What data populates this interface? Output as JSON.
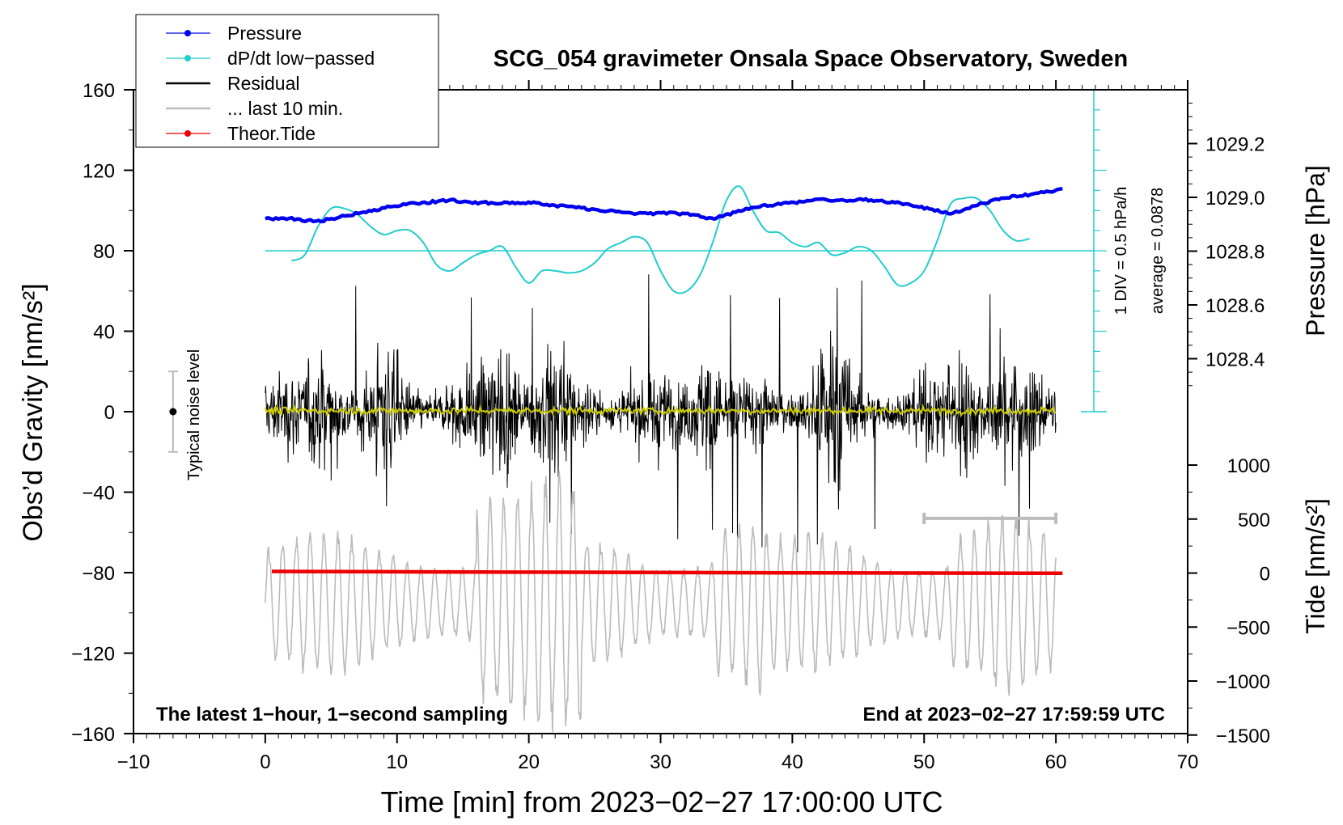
{
  "chart_data": {
    "type": "line",
    "title": "SCG_054 gravimeter Onsala Space Observatory, Sweden",
    "xlabel": "Time [min] from 2023−02−27 17:00:00 UTC",
    "ylabel": "Obs’d Gravity [nm/s²]",
    "y2label_pressure": "Pressure [hPa]",
    "y2label_tide": "Tide [nm/s²]",
    "xlim": [
      -10,
      70
    ],
    "ylim": [
      -160,
      160
    ],
    "x_ticks": [
      "−10",
      "0",
      "10",
      "20",
      "30",
      "40",
      "50",
      "60",
      "70"
    ],
    "y_ticks": [
      "160",
      "120",
      "80",
      "40",
      "0",
      "−40",
      "−80",
      "−120",
      "−160"
    ],
    "pressure_ticks": [
      "1029.2",
      "1029.0",
      "1028.8",
      "1028.6",
      "1028.4"
    ],
    "tide_ticks": [
      "1000",
      "500",
      "0",
      "−500",
      "−1000",
      "−1500"
    ],
    "legend": {
      "position": "top-left",
      "entries": [
        {
          "label": "Pressure",
          "color": "#0000ee",
          "marker": true
        },
        {
          "label": "dP/dt low−passed",
          "color": "#22cccc",
          "marker": true
        },
        {
          "label": "Residual",
          "color": "#000000",
          "marker": false
        },
        {
          "label": "... last 10 min.",
          "color": "#bbbbbb",
          "marker": false
        },
        {
          "label": "Theor.Tide",
          "color": "#ee0000",
          "marker": true
        }
      ]
    },
    "annotations": {
      "bottom_left": "The latest 1−hour, 1−second sampling",
      "bottom_right": "End at 2023−02−27 17:59:59 UTC",
      "noise": "Typical noise level",
      "div": "1 DIV = 0.5 hPa/h",
      "average": "average = 0.0878"
    },
    "noise_bar": {
      "x": -7,
      "y": 0,
      "half_range": 20
    },
    "ten_min_bar": {
      "x_start": 50,
      "x_end": 60,
      "y": -53
    },
    "dpdt_zero_level": 80,
    "series": [
      {
        "name": "Pressure",
        "color": "#0000ee",
        "unit": "hPa",
        "x": [
          0,
          2,
          4,
          6,
          8,
          10,
          12,
          14,
          16,
          18,
          20,
          22,
          24,
          26,
          28,
          30,
          32,
          34,
          36,
          38,
          40,
          42,
          44,
          46,
          48,
          50,
          52,
          54,
          56,
          58,
          60.5
        ],
        "values": [
          1028.92,
          1028.92,
          1028.91,
          1028.93,
          1028.95,
          1028.97,
          1028.98,
          1028.99,
          1028.98,
          1028.98,
          1028.98,
          1028.97,
          1028.96,
          1028.95,
          1028.94,
          1028.94,
          1028.94,
          1028.92,
          1028.95,
          1028.97,
          1028.98,
          1028.99,
          1028.99,
          1028.99,
          1028.98,
          1028.96,
          1028.94,
          1028.97,
          1029.0,
          1029.01,
          1029.03
        ]
      },
      {
        "name": "dP/dt low−passed",
        "color": "#22cccc",
        "unit": "nm/s² plot scale",
        "x": [
          2,
          3,
          4,
          5,
          6,
          7,
          8,
          9,
          10,
          11,
          12,
          13,
          14,
          15,
          16,
          17,
          18,
          19,
          20,
          21,
          22,
          23,
          24,
          25,
          26,
          27,
          28,
          29,
          30,
          31,
          32,
          33,
          34,
          35,
          36,
          37,
          38,
          39,
          40,
          41,
          42,
          43,
          44,
          45,
          46,
          47,
          48,
          49,
          50,
          51,
          52,
          53,
          54,
          55,
          56,
          57,
          58
        ],
        "values": [
          75,
          78,
          92,
          101,
          101,
          98,
          92,
          88,
          90,
          90,
          84,
          73,
          70,
          74,
          78,
          80,
          82,
          72,
          64,
          70,
          70,
          69,
          70,
          74,
          81,
          84,
          87,
          84,
          70,
          60,
          60,
          68,
          85,
          105,
          112,
          100,
          90,
          89,
          84,
          82,
          84,
          78,
          79,
          82,
          80,
          72,
          63,
          64,
          70,
          85,
          103,
          106,
          106,
          100,
          90,
          85,
          86
        ]
      },
      {
        "name": "Theor.Tide",
        "color": "#ee0000",
        "unit": "nm/s²",
        "x": [
          0.5,
          10,
          20,
          30,
          40,
          50,
          60.5
        ],
        "values": [
          15,
          12,
          8,
          5,
          2,
          0,
          -2
        ]
      }
    ]
  }
}
